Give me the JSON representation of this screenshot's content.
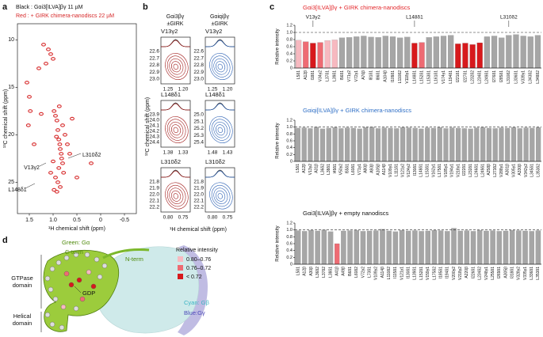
{
  "panel_a": {
    "label": "a",
    "lines": [
      "Black : Gαi3[ILVA]βγ 11 µM",
      "Red : + GIRK chimera-nanodiscs 22 µM"
    ]
  },
  "panel_b": {
    "label": "b",
    "headers": [
      "Gαi3βγ",
      "±GIRK",
      "Gαiqiβγ",
      "±GIRK"
    ],
    "ylabel": "¹³C chemical shift (ppm)",
    "xlabel": "¹H chemical shift (ppm)",
    "rows": [
      {
        "left_label": "V13γ2",
        "right_label": "V13γ2",
        "left_yticks": [
          "22.6",
          "22.7",
          "22.8",
          "22.9",
          "23.0"
        ],
        "left_xticks": [
          "1.25",
          "1.20"
        ],
        "right_yticks": [
          "22.6",
          "22.7",
          "22.8",
          "22.9",
          "23.0"
        ],
        "right_xticks": [
          "1.25",
          "1.20"
        ]
      },
      {
        "left_label": "L148δ1",
        "right_label": "L148δ1",
        "left_yticks": [
          "23.9",
          "24.0",
          "24.1",
          "24.2",
          "24.3",
          "24.4"
        ],
        "left_xticks": [
          "1.38",
          "1.33"
        ],
        "right_yticks": [
          "25.0",
          "25.1",
          "25.2",
          "25.3",
          "25.4"
        ],
        "right_xticks": [
          "1.48",
          "1.43"
        ]
      },
      {
        "left_label": "L310δ2",
        "right_label": "L310δ2",
        "left_yticks": [
          "21.8",
          "21.9",
          "22.0",
          "22.1",
          "22.2"
        ],
        "left_xticks": [
          "0.80",
          "0.75"
        ],
        "right_yticks": [
          "21.8",
          "21.9",
          "22.0",
          "22.1",
          "22.2"
        ],
        "right_xticks": [
          "0.80",
          "0.75"
        ]
      }
    ]
  },
  "panel_c": {
    "label": "c"
  },
  "panel_d": {
    "label": "d",
    "texts": [
      "Green: Gα",
      "C-term",
      "N-term",
      "GTPase",
      "domain",
      "Helical",
      "domain",
      "GDP",
      "Cyan: Gβ",
      "Blue:Gγ"
    ],
    "legend_title": "Relative intensity",
    "legend": [
      {
        "label": "0.80–0.76",
        "color": "#f7b9c0"
      },
      {
        "label": "0.76–0.72",
        "color": "#ee6b73"
      },
      {
        "label": "< 0.72",
        "color": "#d7191c"
      }
    ]
  },
  "chart_data": [
    {
      "type": "scatter",
      "xlabel": "¹H chemical shift (ppm)",
      "ylabel": "¹³C chemical shift (ppm)",
      "color": "#d62728",
      "x": [
        1.55,
        1.5,
        1.48,
        1.52,
        1.2,
        1.1,
        1.05,
        1.0,
        0.98,
        0.95,
        0.92,
        0.9,
        0.88,
        0.86,
        0.85,
        0.83,
        0.82,
        0.8,
        0.78,
        0.95,
        0.9,
        0.85,
        0.92,
        0.88,
        0.8,
        0.75,
        0.7,
        1.0,
        1.05,
        0.98,
        0.93,
        0.87,
        1.3,
        1.25,
        0.2,
        1.4,
        0.6,
        0.65,
        0.5,
        1.15
      ],
      "y": [
        14.5,
        16.0,
        17.5,
        19.0,
        10.5,
        11.0,
        11.5,
        12.0,
        17.5,
        18.0,
        18.5,
        19.5,
        20.5,
        21.0,
        21.5,
        22.0,
        22.5,
        23.0,
        24.0,
        24.5,
        25.0,
        25.5,
        26.0,
        23.5,
        19.0,
        20.0,
        21.0,
        22.8,
        24.0,
        25.8,
        20.2,
        17.0,
        13.0,
        17.8,
        23.0,
        21.0,
        18.3,
        22.0,
        24.5,
        12.5
      ],
      "xlim": [
        1.75,
        -0.75
      ],
      "xticks": [
        1.5,
        {
          "value": 1,
          "label": "1.0"
        },
        0.5,
        0,
        -0.5
      ],
      "ylim": [
        28.3,
        8.3
      ],
      "yticks": [
        10,
        15,
        20,
        25
      ],
      "annotations": [
        "V13γ2",
        "L148δ1",
        "L310δ2"
      ]
    },
    {
      "type": "bar",
      "title": "Gαi3[ILVA]βγ + GIRK chimera-nanodiscs",
      "title_color": "#e3262a",
      "ylabel": "Relative intensity",
      "annotations": [
        "V13γ2",
        "L148δ1",
        "L310δ2"
      ],
      "categories": [
        "L5δ1",
        "A12β",
        "I18δ1",
        "V34γ2",
        "L37δ1",
        "L39δ1",
        "I56δ1",
        "V71γ2",
        "V72γ1",
        "A76β",
        "I81δ1",
        "I86δ1",
        "A104β",
        "I109δ1",
        "L110δ2",
        "V118γ1",
        "L148δ1",
        "L152δ1",
        "L153δ1",
        "L161δ1",
        "V174γ1",
        "L194δ1",
        "I221δ1",
        "I227δ1",
        "L232δ2",
        "L234δ1",
        "L249δ1",
        "I276δ1",
        "I285δ1",
        "L310δ2",
        "L336δ1",
        "V339γ1",
        "L343δ2",
        "L348δ2"
      ],
      "values": [
        0.78,
        0.74,
        0.7,
        0.72,
        0.77,
        0.79,
        0.85,
        0.86,
        0.88,
        0.9,
        0.87,
        0.86,
        0.9,
        0.88,
        0.85,
        0.87,
        0.7,
        0.72,
        0.86,
        0.88,
        0.9,
        0.92,
        0.68,
        0.7,
        0.66,
        0.71,
        0.88,
        0.9,
        0.85,
        0.92,
        0.94,
        0.9,
        0.88,
        0.92
      ],
      "colors": [
        "#f7b9c0",
        "#ee6b73",
        "#d7191c",
        "#ee6b73",
        "#f7b9c0",
        "#f7b9c0",
        "#a6a6a6",
        "#a6a6a6",
        "#a6a6a6",
        "#a6a6a6",
        "#a6a6a6",
        "#a6a6a6",
        "#a6a6a6",
        "#a6a6a6",
        "#a6a6a6",
        "#a6a6a6",
        "#d7191c",
        "#ee6b73",
        "#a6a6a6",
        "#a6a6a6",
        "#a6a6a6",
        "#a6a6a6",
        "#d7191c",
        "#d7191c",
        "#d7191c",
        "#d7191c",
        "#a6a6a6",
        "#a6a6a6",
        "#a6a6a6",
        "#a6a6a6",
        "#a6a6a6",
        "#a6a6a6",
        "#a6a6a6",
        "#a6a6a6"
      ],
      "ylim": [
        0,
        1.2
      ],
      "yticks": [
        0,
        0.2,
        0.4,
        0.6,
        0.8,
        {
          "value": 1,
          "label": "1.0"
        },
        1.2
      ],
      "reference_line": 1
    },
    {
      "type": "bar",
      "title": "Gαiqi[ILVA]βγ + GIRK chimera-nanodiscs",
      "title_color": "#2f6fc6",
      "ylabel": "Relative intensity",
      "categories": [
        "L5δ1",
        "A12β",
        "V13γ2",
        "A31β",
        "L36δ2",
        "L38δ1",
        "I49δ1",
        "V50γ2",
        "I55δ1",
        "L60δ1",
        "V71γ1",
        "A80β",
        "A93β",
        "A105β",
        "A114β",
        "V109γ1",
        "L111δ1",
        "V121γ2",
        "V124γ2",
        "I130δ1",
        "L148δ1",
        "L153δ1",
        "V162γ1",
        "L175δ1",
        "V185γ1",
        "V194γ1",
        "V218γ1",
        "I222δ1",
        "L232δ1",
        "L246δ1",
        "L249δ1",
        "A258β",
        "L273δ2",
        "V288γ1",
        "A301β",
        "V305γ1",
        "A330β",
        "V342γ2",
        "L345δ1",
        "L353δ2"
      ],
      "values": [
        0.97,
        0.98,
        0.96,
        1.0,
        0.95,
        0.97,
        0.99,
        0.96,
        0.98,
        0.97,
        0.95,
        0.99,
        1.0,
        0.96,
        0.98,
        0.97,
        0.96,
        0.99,
        0.98,
        0.97,
        0.95,
        0.98,
        0.97,
        0.99,
        0.96,
        0.98,
        0.97,
        0.96,
        0.95,
        0.98,
        0.99,
        0.97,
        0.96,
        0.98,
        0.97,
        0.99,
        0.96,
        0.98,
        0.97,
        0.99
      ],
      "color": "#a6a6a6",
      "ylim": [
        0,
        1.2
      ],
      "yticks": [
        0,
        0.2,
        0.4,
        0.6,
        0.8,
        {
          "value": 1,
          "label": "1.0"
        },
        1.2
      ],
      "reference_line": 1
    },
    {
      "type": "bar",
      "title": "Gαi3[ILVA]βγ + empty nanodiscs",
      "title_color": "#111111",
      "ylabel": "Relative intensity",
      "categories": [
        "L5δ1",
        "A12β",
        "A30β",
        "L36δ2",
        "L37δ2",
        "L38δ1",
        "A41β",
        "A49β",
        "I56δ1",
        "L60δ2",
        "V72γ2",
        "L73δ1",
        "V109γ2",
        "A114β",
        "L110δ2",
        "I115δ1",
        "V121γ1",
        "I130δ1",
        "L139δ1",
        "L152δ1",
        "V159γ1",
        "L175δ2",
        "I185δ1",
        "I194δ1",
        "V200γ2",
        "V218γ2",
        "A220β",
        "I226δ1",
        "L234δ2",
        "V248γ1",
        "L255δ1",
        "I269δ1",
        "A305β",
        "I318δ1",
        "V328γ2",
        "V335γ1",
        "L336δ1",
        "L353δ1"
      ],
      "values": [
        0.98,
        0.96,
        0.99,
        0.97,
        1.0,
        0.95,
        0.6,
        0.97,
        0.98,
        0.99,
        0.96,
        0.97,
        0.98,
        1.02,
        0.97,
        0.95,
        0.99,
        0.97,
        0.98,
        0.96,
        0.97,
        0.99,
        0.98,
        0.96,
        1.05,
        0.97,
        0.98,
        0.96,
        0.99,
        0.97,
        0.98,
        0.96,
        0.97,
        0.99,
        0.98,
        0.97,
        0.96,
        0.98
      ],
      "color": "#a6a6a6",
      "highlight_color": "#ee6b73",
      "ylim": [
        0,
        1.2
      ],
      "yticks": [
        0,
        0.2,
        0.4,
        0.6,
        0.8,
        {
          "value": 1,
          "label": "1.0"
        },
        1.2
      ],
      "reference_line": 1
    }
  ]
}
